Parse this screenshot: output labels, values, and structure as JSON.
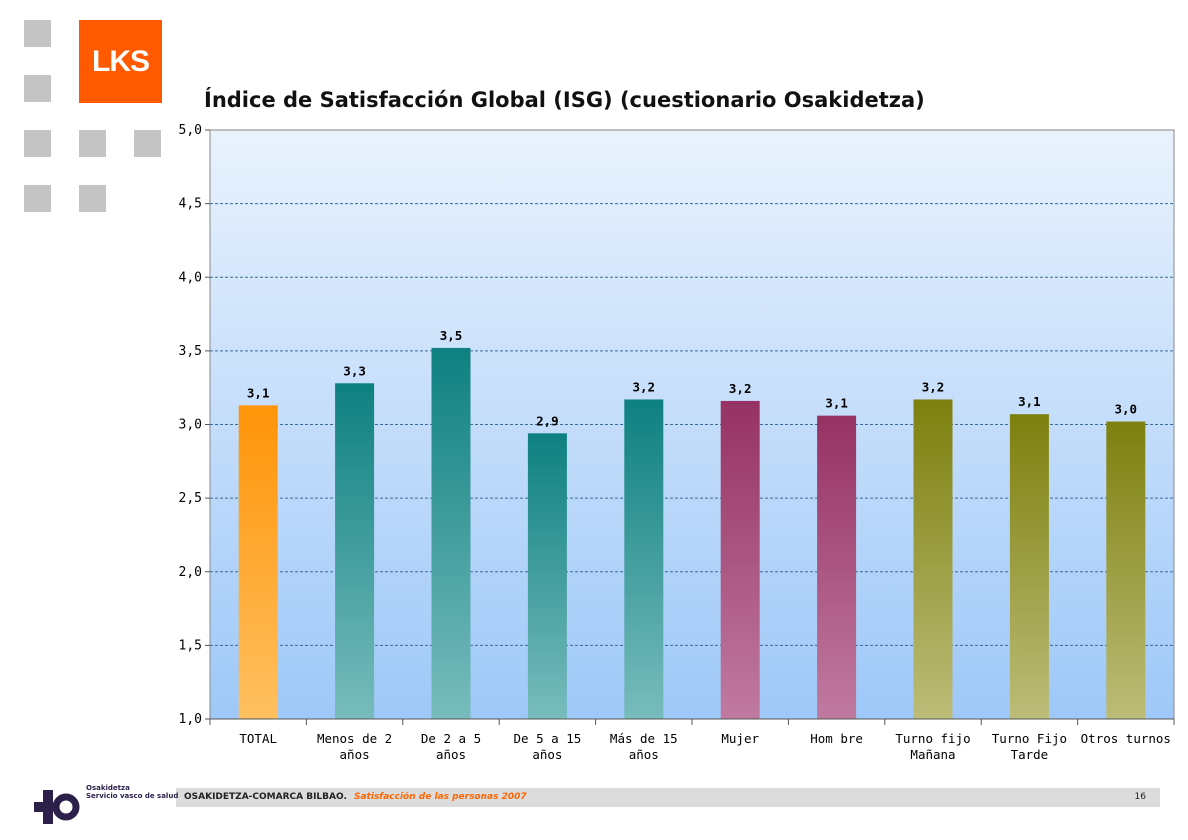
{
  "brand": {
    "logo_text": "LKS",
    "logo_color": "#ff5a00"
  },
  "footer": {
    "organization": "OSAKIDETZA-COMARCA BILBAO.",
    "subtitle": "Satisfacción de las personas 2007",
    "page_number": "16",
    "partner_line1": "Osakidetza",
    "partner_line2": "Servicio vasco de salud"
  },
  "chart_data": {
    "type": "bar",
    "title": "Índice de Satisfacción Global (ISG) (cuestionario Osakidetza)",
    "xlabel": "",
    "ylabel": "",
    "ylim": [
      1.0,
      5.0
    ],
    "yticks": [
      "1,0",
      "1,5",
      "2,0",
      "2,5",
      "3,0",
      "3,5",
      "4,0",
      "4,5",
      "5,0"
    ],
    "grid": true,
    "categories": [
      [
        "TOTAL"
      ],
      [
        "Menos de  2",
        "años"
      ],
      [
        "De 2 a 5",
        "años"
      ],
      [
        "De 5 a 15",
        "años"
      ],
      [
        "Más de 15",
        "años"
      ],
      [
        "Mujer"
      ],
      [
        "Hom bre"
      ],
      [
        "Turno fijo",
        "Mañana"
      ],
      [
        "Turno Fijo",
        "Tarde"
      ],
      [
        "Otros turnos"
      ]
    ],
    "values": [
      3.13,
      3.28,
      3.52,
      2.94,
      3.17,
      3.16,
      3.06,
      3.17,
      3.07,
      3.02
    ],
    "value_labels": [
      "3,1",
      "3,3",
      "3,5",
      "2,9",
      "3,2",
      "3,2",
      "3,1",
      "3,2",
      "3,1",
      "3,0"
    ],
    "colors": [
      [
        "#ff9408",
        "#ffc060"
      ],
      [
        "#0e8080",
        "#78bcbc"
      ],
      [
        "#0e8080",
        "#78bcbc"
      ],
      [
        "#0e8080",
        "#78bcbc"
      ],
      [
        "#0e8080",
        "#78bcbc"
      ],
      [
        "#963264",
        "#c07aa0"
      ],
      [
        "#963264",
        "#c07aa0"
      ],
      [
        "#7d800e",
        "#bcbc78"
      ],
      [
        "#7d800e",
        "#bcbc78"
      ],
      [
        "#7d800e",
        "#bcbc78"
      ]
    ]
  }
}
